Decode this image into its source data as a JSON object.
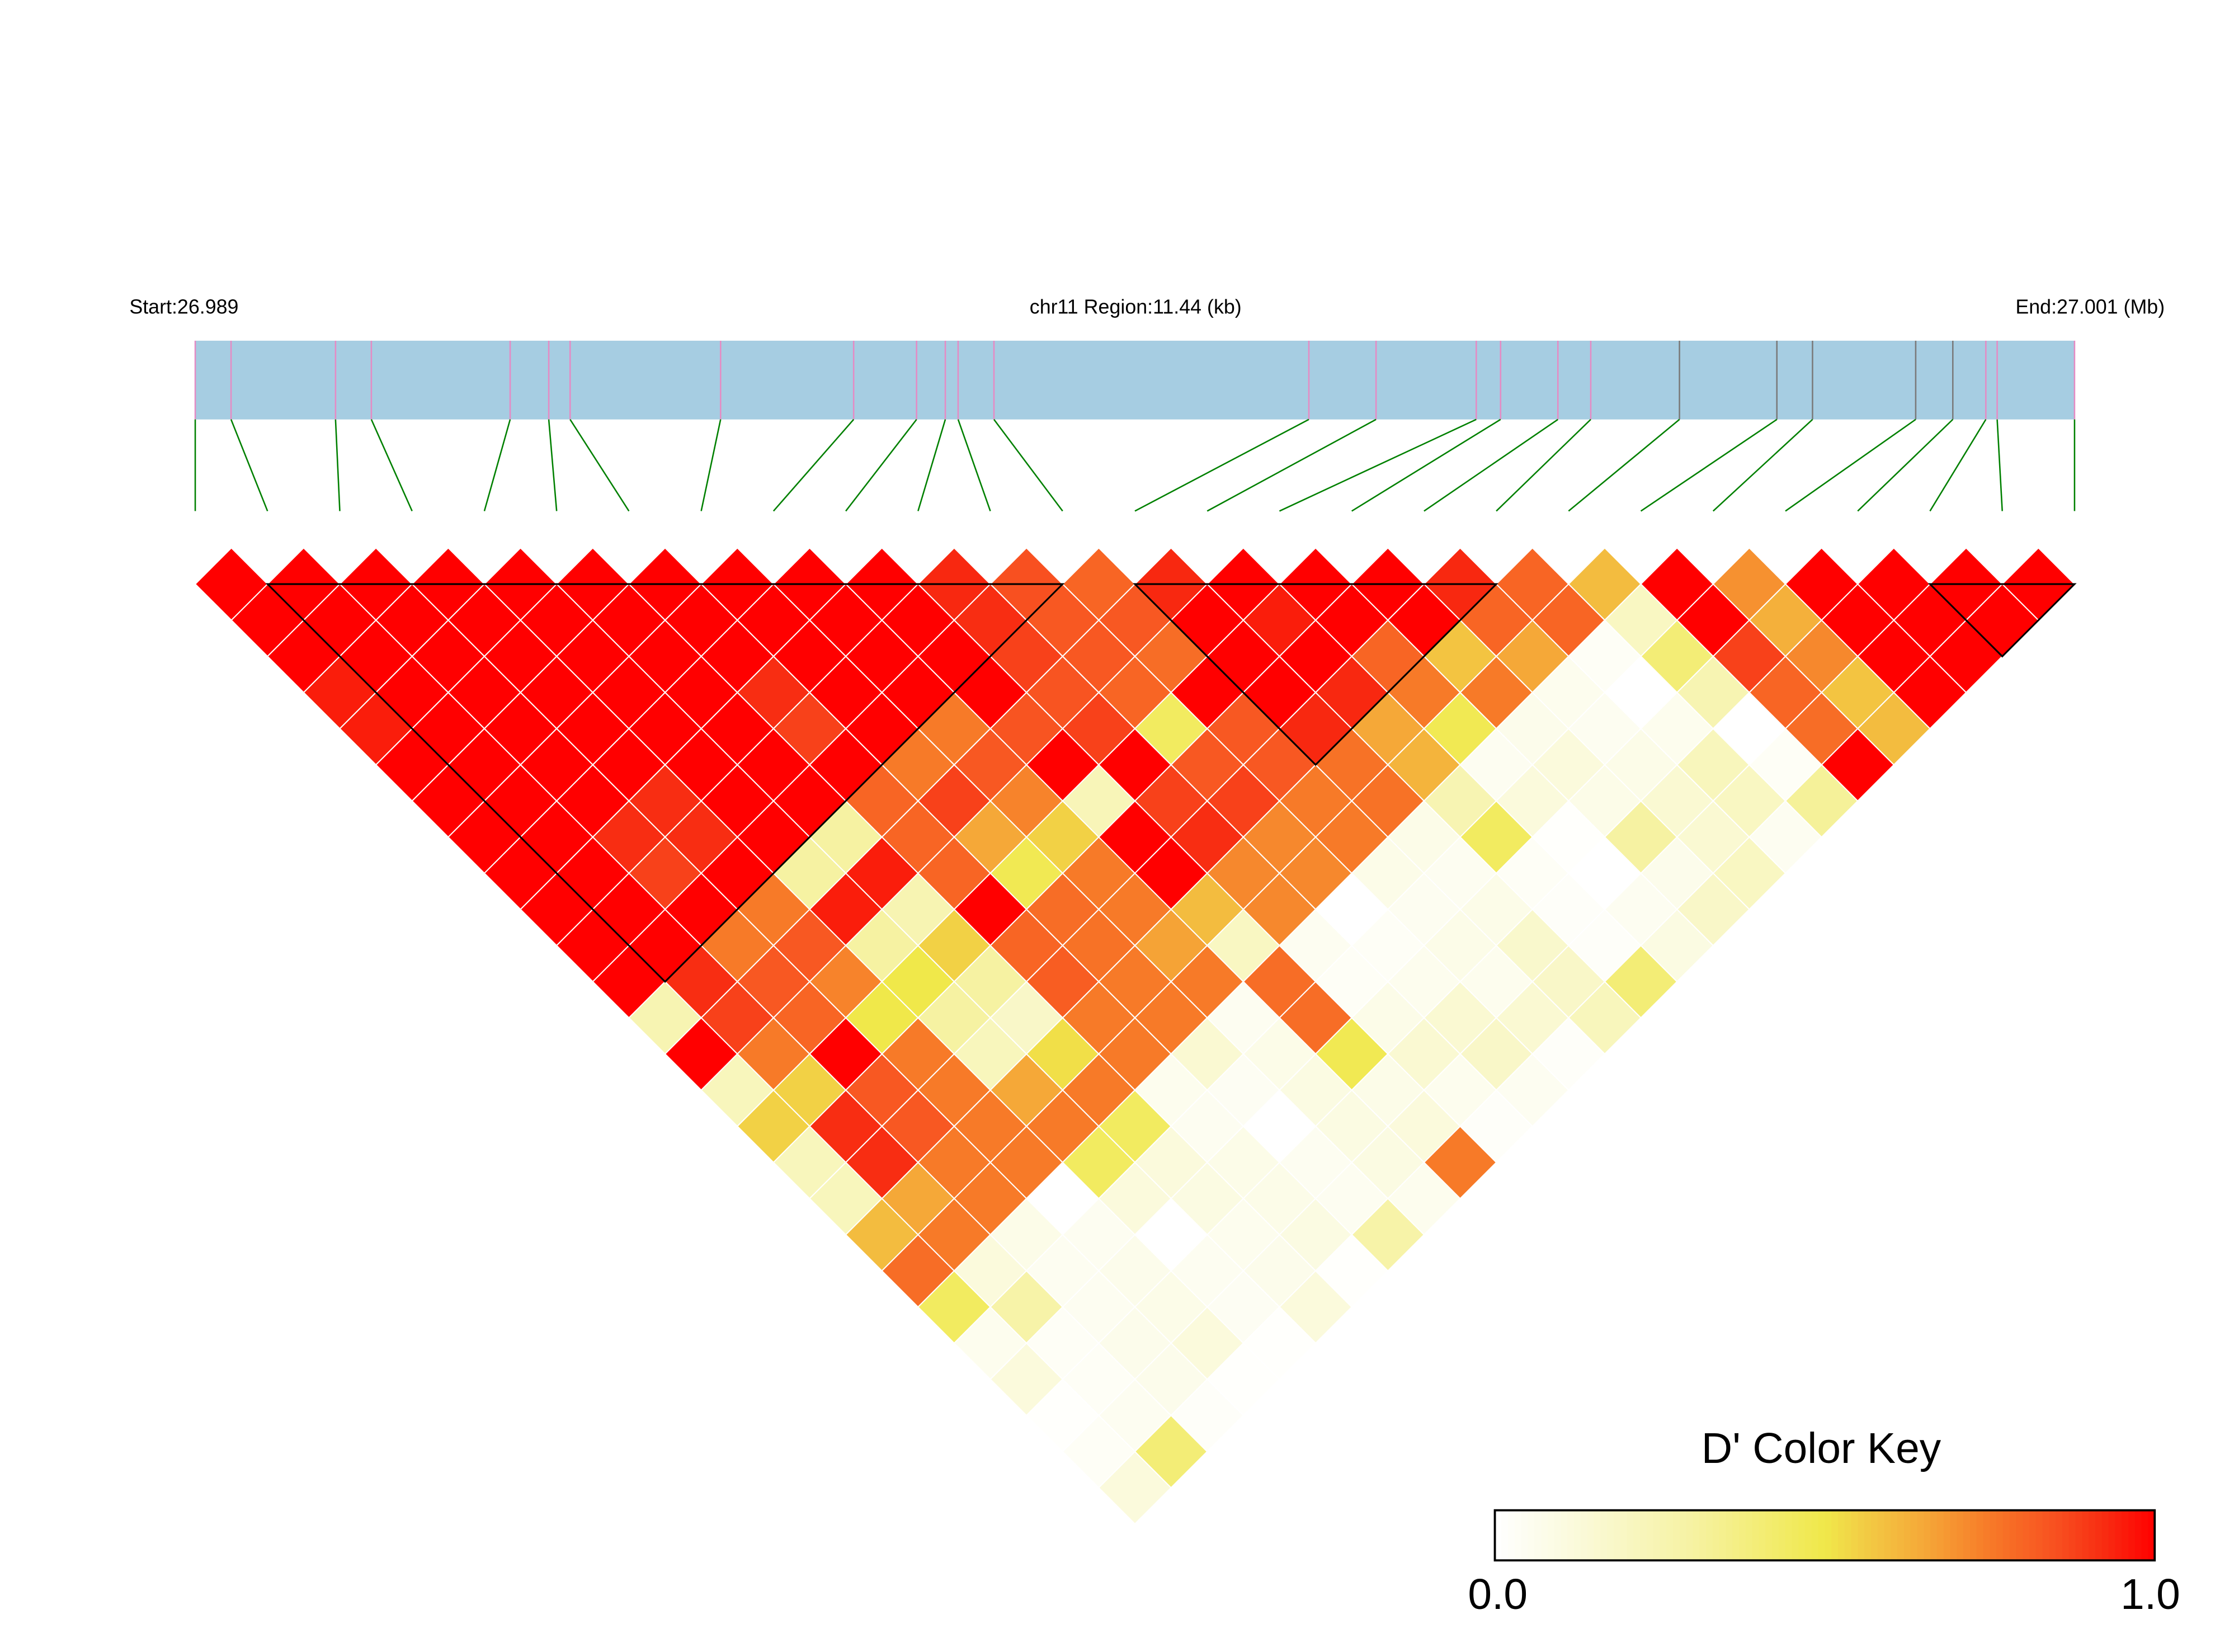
{
  "chart_data": {
    "type": "heatmap",
    "subtype": "LD triangle (D')",
    "header": {
      "start_label": "Start:26.989",
      "region_label": "chr11 Region:11.44 (kb)",
      "end_label": "End:27.001 (Mb)"
    },
    "region": {
      "chromosome": "chr11",
      "start_mb": 26.989,
      "end_mb": 27.001,
      "length_kb": 11.44
    },
    "snp_count": 27,
    "snp_positions_kb_from_start": [
      0,
      0.218,
      0.854,
      1.072,
      1.917,
      2.152,
      2.282,
      3.198,
      4.008,
      4.391,
      4.566,
      4.644,
      4.862,
      6.779,
      7.188,
      7.798,
      7.946,
      8.295,
      8.495,
      9.035,
      9.628,
      9.845,
      10.473,
      10.699,
      10.9,
      10.969,
      11.44
    ],
    "snp_marker_colors": [
      "pink",
      "pink",
      "pink",
      "pink",
      "pink",
      "pink",
      "pink",
      "pink",
      "pink",
      "pink",
      "pink",
      "pink",
      "pink",
      "pink",
      "pink",
      "pink",
      "pink",
      "pink",
      "pink",
      "gray",
      "gray",
      "gray",
      "gray",
      "gray",
      "pink",
      "pink",
      "pink"
    ],
    "dprime_diagonals_note": "diagonal k lists D'(SNP i, SNP i+k) for i = 1..27-k (SNPs in order)",
    "dprime_diagonals": [
      [
        1,
        1,
        1,
        1,
        1,
        1,
        1,
        1,
        1,
        1,
        0.93,
        0.85,
        0.8,
        0.93,
        1,
        1,
        1,
        0.93,
        0.8,
        0.6,
        1,
        0.7,
        1,
        1,
        1,
        1
      ],
      [
        1,
        1,
        1,
        1,
        1,
        1,
        1,
        1,
        1,
        1,
        0.92,
        0.83,
        0.83,
        1,
        0.95,
        1,
        1,
        0.8,
        0.8,
        0.2,
        1,
        0.63,
        1,
        1,
        1
      ],
      [
        1,
        1,
        1,
        1,
        1,
        1,
        1,
        1,
        1,
        1,
        0.88,
        0.83,
        0.78,
        1,
        1,
        0.8,
        0.58,
        0.65,
        0.03,
        0.4,
        0.88,
        0.72,
        1,
        1
      ],
      [
        0.95,
        1,
        1,
        1,
        1,
        1,
        0.92,
        1,
        1,
        1,
        0.84,
        0.8,
        1,
        1,
        0.93,
        0.75,
        0.75,
        0.06,
        0,
        0.25,
        0.8,
        0.58,
        1
      ],
      [
        0.95,
        1,
        1,
        1,
        1,
        1,
        0.88,
        1,
        0.75,
        0.84,
        0.88,
        0.45,
        0.83,
        0.93,
        0.65,
        0.48,
        0.07,
        0.05,
        0.06,
        0,
        0.78,
        0.6
      ],
      [
        1,
        1,
        1,
        1,
        1,
        1,
        1,
        0.75,
        0.83,
        1,
        1,
        0.83,
        0.83,
        0.77,
        0.62,
        0.05,
        0.12,
        0.08,
        0.22,
        0.03,
        1
      ],
      [
        1,
        1,
        1,
        0.92,
        1,
        1,
        0.8,
        0.88,
        0.73,
        0.23,
        0.88,
        0.88,
        0.75,
        0.77,
        0.25,
        0.12,
        0.08,
        0.15,
        0.2,
        0.32
      ],
      [
        1,
        1,
        0.92,
        0.92,
        1,
        0.3,
        0.8,
        0.65,
        0.55,
        1,
        0.92,
        0.72,
        0.75,
        0.08,
        0.45,
        0.01,
        0.3,
        0.15,
        0.05
      ],
      [
        1,
        1,
        0.88,
        1,
        0.3,
        0.95,
        0.8,
        0.48,
        0.75,
        1,
        0.72,
        0.72,
        0.08,
        0.05,
        0.03,
        0,
        0.07,
        0.2
      ],
      [
        1,
        1,
        1,
        0.75,
        0.95,
        0.25,
        1,
        0.78,
        0.75,
        0.6,
        0.72,
        0,
        0.05,
        0.08,
        0.02,
        0.05,
        0.18
      ],
      [
        1,
        1,
        0.75,
        0.83,
        0.3,
        0.55,
        0.8,
        0.77,
        0.66,
        0.2,
        0.05,
        0.03,
        0.08,
        0.17,
        0.02,
        0.1
      ],
      [
        1,
        0.92,
        0.83,
        0.73,
        0.5,
        0.3,
        0.82,
        0.75,
        0.75,
        0.78,
        0.03,
        0.06,
        0.06,
        0.18,
        0.4
      ],
      [
        0.25,
        0.88,
        0.8,
        0.5,
        0.3,
        0.18,
        0.75,
        0.75,
        0.05,
        0.78,
        0.08,
        0.15,
        0.15,
        0.22
      ],
      [
        1,
        0.75,
        1,
        0.75,
        0.22,
        0.52,
        0.75,
        0.15,
        0.08,
        0.48,
        0.15,
        0.18,
        0.02
      ],
      [
        0.22,
        0.55,
        0.83,
        0.75,
        0.65,
        0.75,
        0.06,
        0.04,
        0.1,
        0.08,
        0.06,
        0.05
      ],
      [
        0.55,
        0.92,
        0.83,
        0.75,
        0.75,
        0.45,
        0.05,
        0,
        0.1,
        0.12,
        0.02
      ],
      [
        0.22,
        0.92,
        0.75,
        0.75,
        0.45,
        0.12,
        0.08,
        0.05,
        0.1,
        0.75
      ],
      [
        0.22,
        0.65,
        0.75,
        0,
        0.12,
        0.1,
        0.08,
        0.05,
        0.06
      ],
      [
        0.6,
        0.75,
        0.08,
        0.05,
        0,
        0.06,
        0.1,
        0.28
      ],
      [
        0.78,
        0.12,
        0.05,
        0.07,
        0.05,
        0.07,
        0.01
      ],
      [
        0.45,
        0.28,
        0.05,
        0.08,
        0.04,
        0.12
      ],
      [
        0.06,
        0.03,
        0.07,
        0.12,
        0.01
      ],
      [
        0.12,
        0.03,
        0.07,
        0.01
      ],
      [
        0.01,
        0.05,
        0.02
      ],
      [
        0.03,
        0.4
      ],
      [
        0.12
      ]
    ],
    "ld_blocks_snp_ranges": [
      [
        2,
        13
      ],
      [
        14,
        19
      ],
      [
        25,
        27
      ]
    ],
    "color_key": {
      "title": "D' Color Key",
      "min_label": "0.0",
      "max_label": "1.0",
      "range": [
        0,
        1
      ],
      "stops": [
        {
          "v": 0,
          "c": "#ffffff"
        },
        {
          "v": 0.1,
          "c": "#fbfbe2"
        },
        {
          "v": 0.3,
          "c": "#f6f2a2"
        },
        {
          "v": 0.5,
          "c": "#f0e84a"
        },
        {
          "v": 0.56,
          "c": "#f2cc44"
        },
        {
          "v": 0.65,
          "c": "#f5a838"
        },
        {
          "v": 0.75,
          "c": "#f77a28"
        },
        {
          "v": 0.85,
          "c": "#f85020"
        },
        {
          "v": 0.93,
          "c": "#f82810"
        },
        {
          "v": 1,
          "c": "#ff0000"
        }
      ]
    },
    "colors": {
      "gene_bar": "#a6cde2",
      "marker_pink": "#e58bc4",
      "marker_gray": "#7a7a7a",
      "connector": "#008000",
      "block_outline": "#000000",
      "cell_border": "#ffffff"
    }
  }
}
